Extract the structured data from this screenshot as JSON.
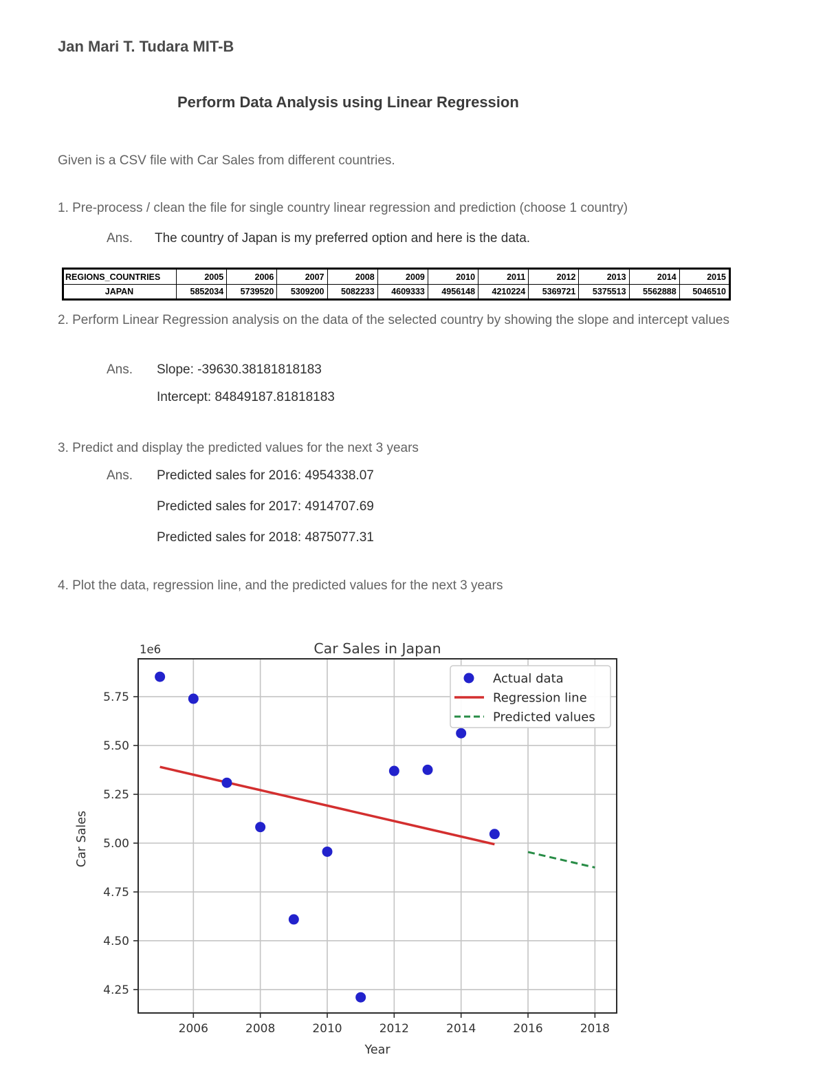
{
  "document": {
    "author": "Jan Mari T. Tudara MIT-B",
    "title": "Perform Data Analysis using Linear Regression",
    "intro": "Given is a CSV file with Car Sales from different countries.",
    "q1": {
      "question": "1. Pre-process / clean the file for single country linear regression and prediction (choose 1 country)",
      "ans_label": "Ans.",
      "answer": "The country of Japan is my preferred option and here is the data."
    },
    "q2": {
      "question": "2. Perform Linear Regression analysis on the data of the selected country by showing the slope and intercept values",
      "ans_label": "Ans.",
      "slope_line": "Slope: -39630.38181818183",
      "intercept_line": "Intercept: 84849187.81818183"
    },
    "q3": {
      "question": "3. Predict and display the predicted values for the next 3 years",
      "ans_label": "Ans.",
      "lines": [
        "Predicted sales for 2016: 4954338.07",
        "Predicted sales for 2017: 4914707.69",
        "Predicted sales for 2018: 4875077.31"
      ]
    },
    "q4": {
      "question": "4. Plot the data, regression line, and the predicted values for the next 3 years"
    }
  },
  "table": {
    "columns": [
      "REGIONS_COUNTRIES",
      "2005",
      "2006",
      "2007",
      "2008",
      "2009",
      "2010",
      "2011",
      "2012",
      "2013",
      "2014",
      "2015"
    ],
    "rows": [
      [
        "JAPAN",
        "5852034",
        "5739520",
        "5309200",
        "5082233",
        "4609333",
        "4956148",
        "4210224",
        "5369721",
        "5375513",
        "5562888",
        "5046510"
      ]
    ]
  },
  "chart_data": {
    "type": "scatter",
    "title": "Car Sales in Japan",
    "xlabel": "Year",
    "ylabel": "Car Sales",
    "offset_text": "1e6",
    "grid": true,
    "legend_position": "upper right",
    "xlim": [
      2004.35,
      2018.65
    ],
    "ylim": [
      4130000,
      5944000
    ],
    "xticks": [
      2006,
      2008,
      2010,
      2012,
      2014,
      2016,
      2018
    ],
    "yticks": [
      4250000,
      4500000,
      4750000,
      5000000,
      5250000,
      5500000,
      5750000
    ],
    "ytick_labels": [
      "4.25",
      "4.50",
      "4.75",
      "5.00",
      "5.25",
      "5.50",
      "5.75"
    ],
    "slope": -39630.38181818183,
    "intercept": 84849187.81818183,
    "series": [
      {
        "name": "Actual data",
        "type": "scatter",
        "color": "#2222cc",
        "x": [
          2005,
          2006,
          2007,
          2008,
          2009,
          2010,
          2011,
          2012,
          2013,
          2014,
          2015
        ],
        "y": [
          5852034,
          5739520,
          5309200,
          5082233,
          4609333,
          4956148,
          4210224,
          5369721,
          5375513,
          5562888,
          5046510
        ]
      },
      {
        "name": "Regression line",
        "type": "line",
        "color": "#d32f2f",
        "x": [
          2005,
          2015
        ],
        "y": [
          5390272.27,
          4993968.45
        ]
      },
      {
        "name": "Predicted values",
        "type": "dashed-line",
        "color": "#288c46",
        "x": [
          2016,
          2017,
          2018
        ],
        "y": [
          4954338.07,
          4914707.69,
          4875077.31
        ]
      }
    ]
  }
}
